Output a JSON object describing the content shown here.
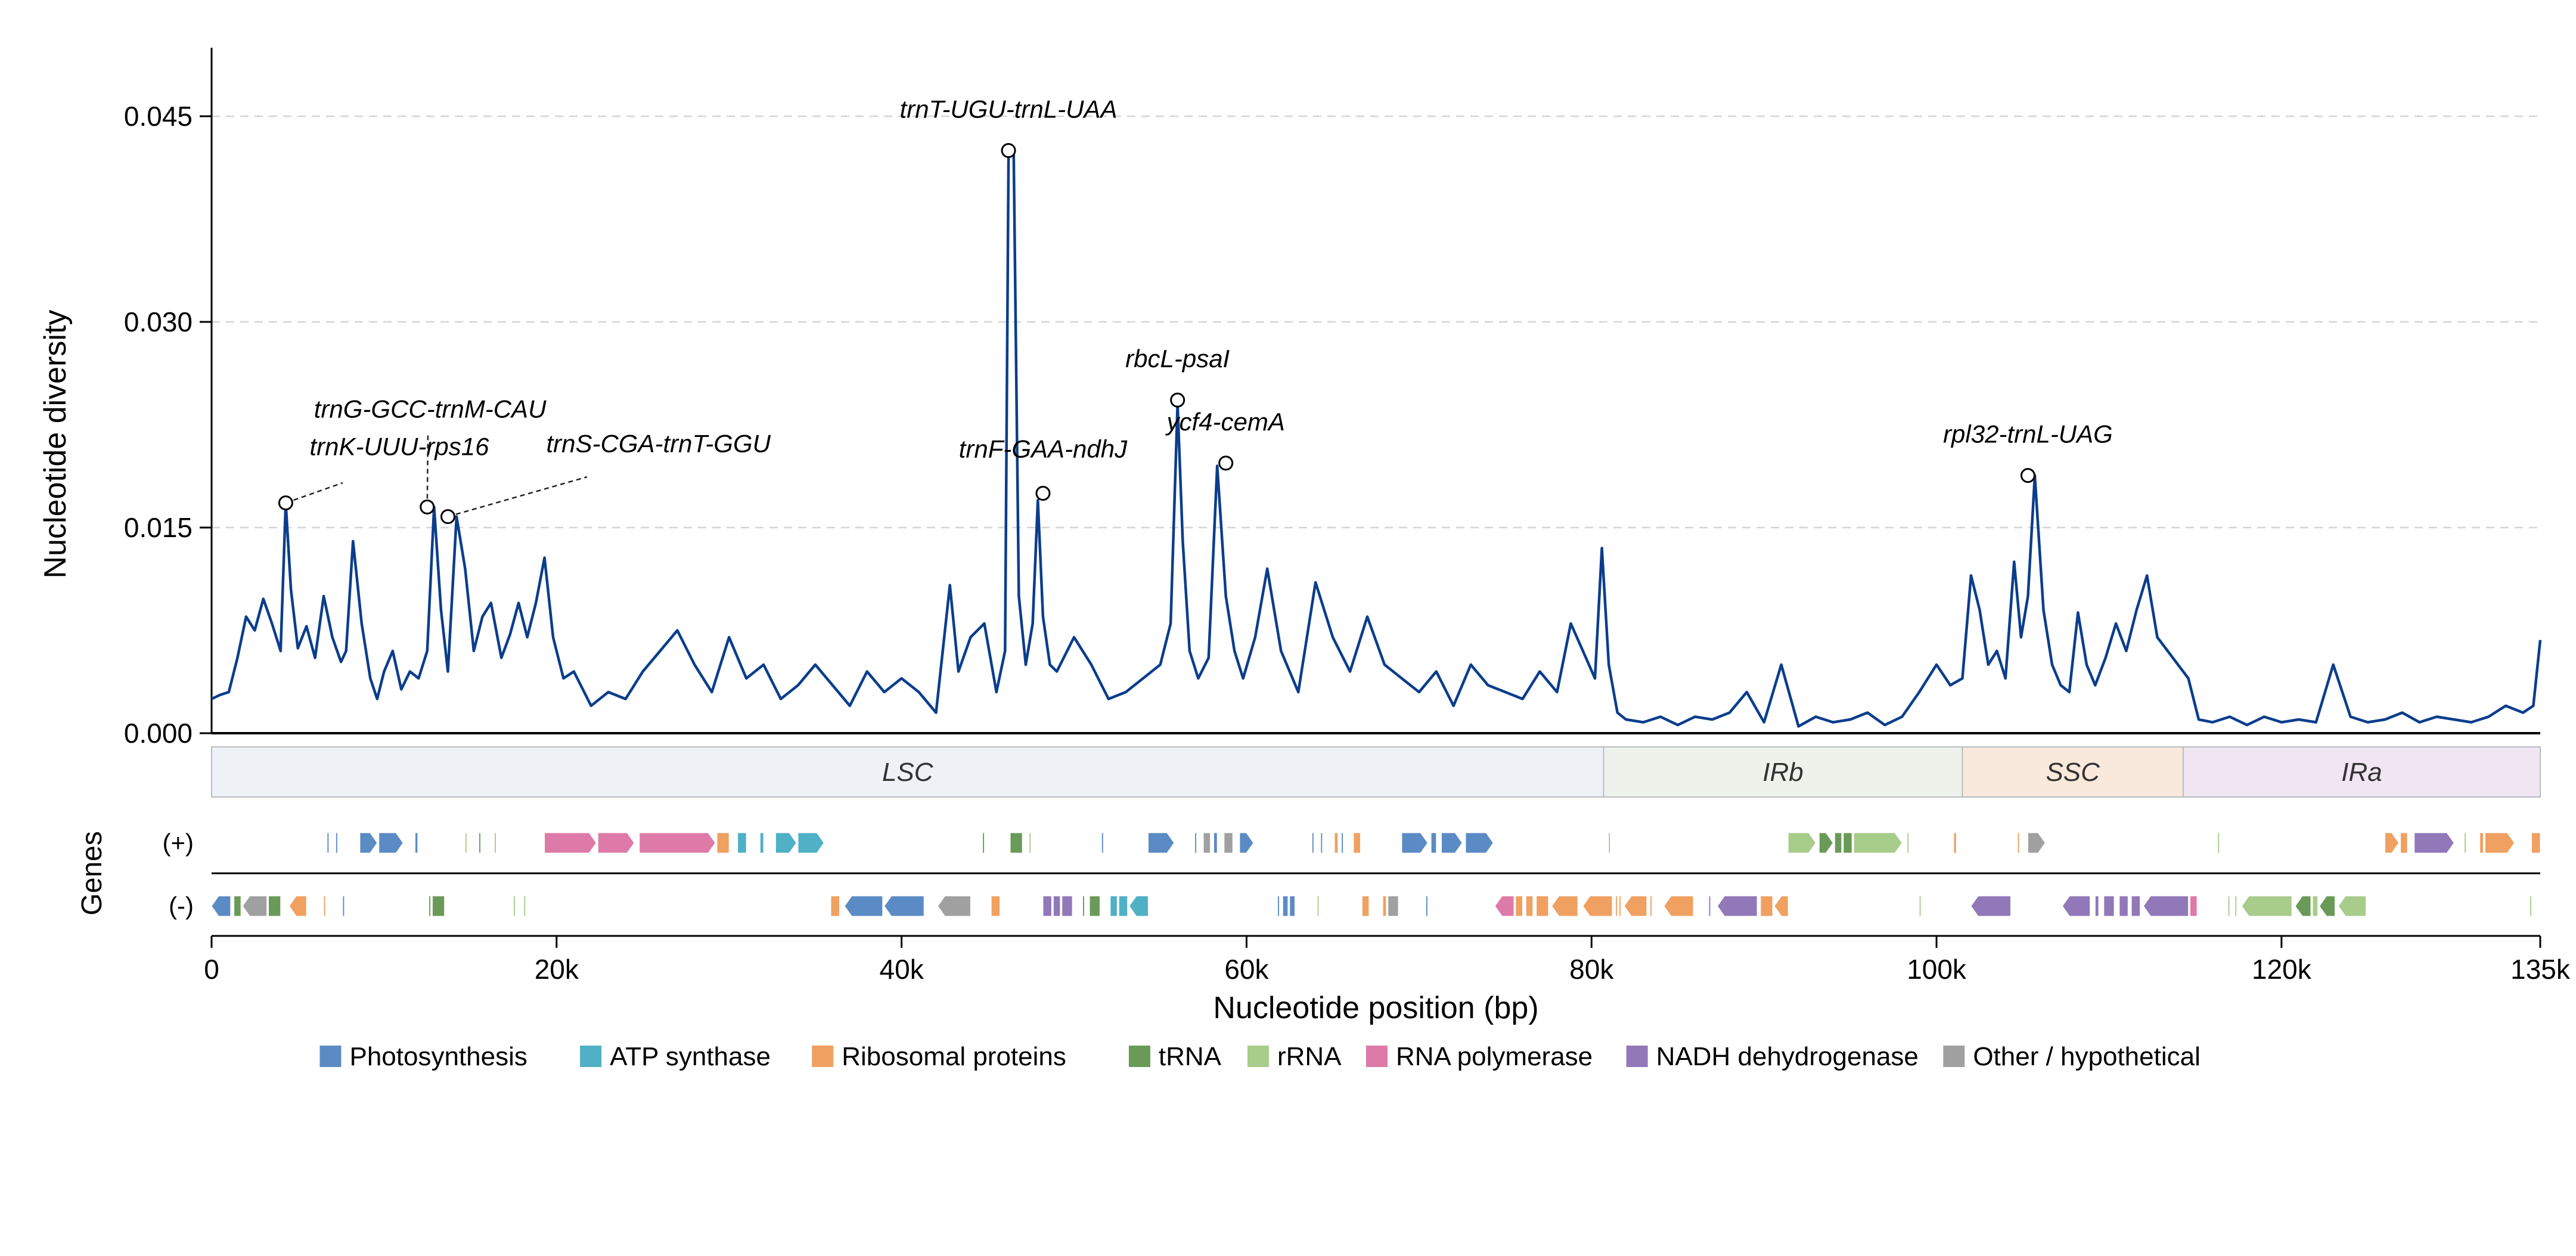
{
  "chart_data": {
    "type": "line",
    "ylabel": "Nucleotide diversity",
    "xlabel": "Nucleotide position (bp)",
    "xlim": [
      0,
      135000
    ],
    "ylim": [
      0,
      0.05
    ],
    "yticks": [
      0.0,
      0.015,
      0.03,
      0.045
    ],
    "ytick_labels": [
      "0.000",
      "0.015",
      "0.030",
      "0.045"
    ],
    "xticks": [
      0,
      20000,
      40000,
      60000,
      80000,
      100000,
      120000,
      135000
    ],
    "xtick_labels": [
      "0",
      "20k",
      "40k",
      "60k",
      "80k",
      "100k",
      "120k",
      "135k"
    ],
    "grid": "horizontal dashed at y ticks",
    "line_color": "#0b3d8c",
    "series": [
      {
        "values_x": [
          0,
          500,
          1000,
          1500,
          2000,
          2500,
          3000,
          3500,
          4000,
          4300,
          4600,
          5000,
          5500,
          6000,
          6500,
          7000,
          7500,
          7800,
          8200,
          8700,
          9200,
          9600,
          10000,
          10500,
          11000,
          11500,
          12000,
          12500,
          12900,
          13300,
          13700,
          14200,
          14700,
          15200,
          15700,
          16200,
          16800,
          17300,
          17800,
          18300,
          18800,
          19300,
          19800,
          20400,
          21000,
          22000,
          23000,
          24000,
          25000,
          26000,
          27000,
          28000,
          29000,
          30000,
          31000,
          32000,
          33000,
          34000,
          35000,
          36000,
          37000,
          38000,
          39000,
          40000,
          41000,
          42000,
          42800,
          43300,
          44000,
          44800,
          45500,
          46000,
          46200,
          46500,
          46800,
          47200,
          47600,
          47900,
          48200,
          48600,
          49000,
          50000,
          51000,
          52000,
          53000,
          54000,
          55000,
          55600,
          56000,
          56300,
          56700,
          57200,
          57800,
          58300,
          58800,
          59300,
          59800,
          60500,
          61200,
          62000,
          63000,
          64000,
          65000,
          66000,
          67000,
          68000,
          69000,
          70000,
          71000,
          72000,
          73000,
          74000,
          75000,
          76000,
          77000,
          78000,
          78800,
          79500,
          80200,
          80600,
          81000,
          81500,
          82000,
          83000,
          84000,
          85000,
          86000,
          87000,
          88000,
          89000,
          90000,
          91000,
          92000,
          93000,
          94000,
          95000,
          96000,
          97000,
          98000,
          99000,
          100000,
          100800,
          101500,
          102000,
          102500,
          103000,
          103500,
          104000,
          104500,
          104900,
          105300,
          105700,
          106200,
          106700,
          107200,
          107700,
          108200,
          108700,
          109200,
          109800,
          110400,
          111000,
          111600,
          112200,
          112800,
          113400,
          114000,
          114600,
          115200,
          116000,
          117000,
          118000,
          119000,
          120000,
          121000,
          122000,
          123000,
          124000,
          125000,
          126000,
          127000,
          128000,
          129000,
          130000,
          131000,
          132000,
          133000,
          134000,
          134600,
          135000
        ],
        "values_y": [
          0.0025,
          0.0028,
          0.003,
          0.0055,
          0.0085,
          0.0075,
          0.0098,
          0.008,
          0.006,
          0.0168,
          0.0105,
          0.0062,
          0.0078,
          0.0055,
          0.01,
          0.007,
          0.0052,
          0.006,
          0.014,
          0.008,
          0.004,
          0.0025,
          0.0045,
          0.006,
          0.0032,
          0.0045,
          0.004,
          0.006,
          0.0165,
          0.009,
          0.0045,
          0.0158,
          0.012,
          0.006,
          0.0085,
          0.0095,
          0.0055,
          0.0072,
          0.0095,
          0.007,
          0.0095,
          0.0128,
          0.007,
          0.004,
          0.0045,
          0.002,
          0.003,
          0.0025,
          0.0045,
          0.006,
          0.0075,
          0.005,
          0.003,
          0.007,
          0.004,
          0.005,
          0.0025,
          0.0035,
          0.005,
          0.0035,
          0.002,
          0.0045,
          0.003,
          0.004,
          0.003,
          0.0015,
          0.0108,
          0.0045,
          0.007,
          0.008,
          0.003,
          0.006,
          0.042,
          0.0425,
          0.01,
          0.005,
          0.008,
          0.017,
          0.0085,
          0.005,
          0.0045,
          0.007,
          0.005,
          0.0025,
          0.003,
          0.004,
          0.005,
          0.008,
          0.024,
          0.014,
          0.006,
          0.004,
          0.0055,
          0.0195,
          0.01,
          0.006,
          0.004,
          0.007,
          0.012,
          0.006,
          0.003,
          0.011,
          0.007,
          0.0045,
          0.0085,
          0.005,
          0.004,
          0.003,
          0.0045,
          0.002,
          0.005,
          0.0035,
          0.003,
          0.0025,
          0.0045,
          0.003,
          0.008,
          0.006,
          0.004,
          0.0135,
          0.005,
          0.0015,
          0.001,
          0.0008,
          0.0012,
          0.0006,
          0.0012,
          0.001,
          0.0015,
          0.003,
          0.0008,
          0.005,
          0.0005,
          0.0012,
          0.0008,
          0.001,
          0.0015,
          0.0006,
          0.0012,
          0.003,
          0.005,
          0.0035,
          0.004,
          0.0115,
          0.009,
          0.005,
          0.006,
          0.004,
          0.0125,
          0.007,
          0.01,
          0.0188,
          0.009,
          0.005,
          0.0035,
          0.003,
          0.0088,
          0.005,
          0.0035,
          0.0055,
          0.008,
          0.006,
          0.009,
          0.0115,
          0.007,
          0.006,
          0.005,
          0.004,
          0.001,
          0.0008,
          0.0012,
          0.0006,
          0.0012,
          0.0008,
          0.001,
          0.0008,
          0.005,
          0.0012,
          0.0008,
          0.001,
          0.0015,
          0.0008,
          0.0012,
          0.001,
          0.0008,
          0.0012,
          0.002,
          0.0015,
          0.002,
          0.0068
        ]
      }
    ],
    "annotations": [
      {
        "label": "trnK-UUU-rps16",
        "x": 4300,
        "y": 0.0168
      },
      {
        "label": "trnG-GCC-trnM-CAU",
        "x": 12500,
        "y": 0.0165
      },
      {
        "label": "trnS-CGA-trnT-GGU",
        "x": 13700,
        "y": 0.0158
      },
      {
        "label": "trnT-UGU-trnL-UAA",
        "x": 46200,
        "y": 0.0425
      },
      {
        "label": "trnF-GAA-ndhJ",
        "x": 48200,
        "y": 0.0175
      },
      {
        "label": "rbcL-psaI",
        "x": 56000,
        "y": 0.0243
      },
      {
        "label": "ycf4-cemA",
        "x": 58800,
        "y": 0.0197
      },
      {
        "label": "rpl32-trnL-UAG",
        "x": 105300,
        "y": 0.0188
      }
    ],
    "regions": [
      {
        "label": "LSC",
        "start": 0,
        "end": 80700,
        "color": "#eef2f6"
      },
      {
        "label": "IRb",
        "start": 80700,
        "end": 101500,
        "color": "#edf3eb"
      },
      {
        "label": "SSC",
        "start": 101500,
        "end": 114300,
        "color": "#f9e9dc"
      },
      {
        "label": "IRa",
        "start": 114300,
        "end": 135000,
        "color": "#f0e6f1"
      }
    ],
    "gene_track_label": "Genes",
    "strand_labels": [
      "(+)",
      "(-)"
    ],
    "gene_categories": [
      {
        "name": "Photosynthesis",
        "color": "#5b8bc4"
      },
      {
        "name": "ATP synthase",
        "color": "#4fb0c6"
      },
      {
        "name": "Ribosomal proteins",
        "color": "#f0a060"
      },
      {
        "name": "tRNA",
        "color": "#6a9a58"
      },
      {
        "name": "rRNA",
        "color": "#a8cc8a"
      },
      {
        "name": "RNA polymerase",
        "color": "#de7aa8"
      },
      {
        "name": "NADH dehydrogenase",
        "color": "#9178b8"
      },
      {
        "name": "Other / hypothetical",
        "color": "#a0a0a0"
      }
    ],
    "genes_plus": [
      {
        "start": 6700,
        "end": 6800,
        "cat": 0
      },
      {
        "start": 7200,
        "end": 7300,
        "cat": 0
      },
      {
        "start": 8600,
        "end": 9600,
        "cat": 0
      },
      {
        "start": 9700,
        "end": 11100,
        "cat": 0
      },
      {
        "start": 11800,
        "end": 11950,
        "cat": 0
      },
      {
        "start": 14700,
        "end": 14800,
        "cat": 4
      },
      {
        "start": 15500,
        "end": 15600,
        "cat": 3
      },
      {
        "start": 16400,
        "end": 16500,
        "cat": 4
      },
      {
        "start": 19300,
        "end": 22300,
        "cat": 5
      },
      {
        "start": 22400,
        "end": 24500,
        "cat": 5
      },
      {
        "start": 24800,
        "end": 29200,
        "cat": 5
      },
      {
        "start": 29300,
        "end": 30000,
        "cat": 2
      },
      {
        "start": 30500,
        "end": 31000,
        "cat": 1
      },
      {
        "start": 31800,
        "end": 32000,
        "cat": 1
      },
      {
        "start": 32700,
        "end": 33900,
        "cat": 1
      },
      {
        "start": 34000,
        "end": 35500,
        "cat": 1
      },
      {
        "start": 44700,
        "end": 44800,
        "cat": 3
      },
      {
        "start": 46300,
        "end": 47000,
        "cat": 3
      },
      {
        "start": 47400,
        "end": 47500,
        "cat": 4
      },
      {
        "start": 51600,
        "end": 51700,
        "cat": 0
      },
      {
        "start": 54300,
        "end": 55800,
        "cat": 0
      },
      {
        "start": 57000,
        "end": 57100,
        "cat": 0
      },
      {
        "start": 57500,
        "end": 57900,
        "cat": 7
      },
      {
        "start": 58100,
        "end": 58300,
        "cat": 0
      },
      {
        "start": 58700,
        "end": 59200,
        "cat": 7
      },
      {
        "start": 59600,
        "end": 60400,
        "cat": 0
      },
      {
        "start": 63800,
        "end": 63900,
        "cat": 0
      },
      {
        "start": 64300,
        "end": 64400,
        "cat": 0
      },
      {
        "start": 65100,
        "end": 65300,
        "cat": 2
      },
      {
        "start": 65500,
        "end": 65600,
        "cat": 0
      },
      {
        "start": 66200,
        "end": 66600,
        "cat": 2
      },
      {
        "start": 69000,
        "end": 70500,
        "cat": 0
      },
      {
        "start": 70700,
        "end": 71000,
        "cat": 0
      },
      {
        "start": 71300,
        "end": 72500,
        "cat": 0
      },
      {
        "start": 72700,
        "end": 74300,
        "cat": 0
      },
      {
        "start": 81000,
        "end": 81050,
        "cat": 3
      },
      {
        "start": 91400,
        "end": 93000,
        "cat": 4
      },
      {
        "start": 93200,
        "end": 94000,
        "cat": 3
      },
      {
        "start": 94100,
        "end": 94500,
        "cat": 3
      },
      {
        "start": 94600,
        "end": 95100,
        "cat": 3
      },
      {
        "start": 95200,
        "end": 98000,
        "cat": 4
      },
      {
        "start": 98300,
        "end": 98400,
        "cat": 4
      },
      {
        "start": 101000,
        "end": 101150,
        "cat": 2
      },
      {
        "start": 104700,
        "end": 104800,
        "cat": 2
      },
      {
        "start": 105300,
        "end": 106300,
        "cat": 7
      },
      {
        "start": 116300,
        "end": 116400,
        "cat": 4
      },
      {
        "start": 126000,
        "end": 126800,
        "cat": 2
      },
      {
        "start": 126900,
        "end": 127300,
        "cat": 2
      },
      {
        "start": 127700,
        "end": 130000,
        "cat": 6
      },
      {
        "start": 130600,
        "end": 130700,
        "cat": 4
      },
      {
        "start": 131500,
        "end": 131700,
        "cat": 2
      },
      {
        "start": 131800,
        "end": 133500,
        "cat": 2
      },
      {
        "start": 134500,
        "end": 135000,
        "cat": 2
      }
    ],
    "genes_minus": [
      {
        "start": 0,
        "end": 1100,
        "cat": 0
      },
      {
        "start": 1300,
        "end": 1700,
        "cat": 3
      },
      {
        "start": 1800,
        "end": 3200,
        "cat": 7
      },
      {
        "start": 3300,
        "end": 4000,
        "cat": 3
      },
      {
        "start": 4500,
        "end": 5500,
        "cat": 2
      },
      {
        "start": 6500,
        "end": 6600,
        "cat": 2
      },
      {
        "start": 7600,
        "end": 7700,
        "cat": 0
      },
      {
        "start": 12600,
        "end": 12700,
        "cat": 3
      },
      {
        "start": 12800,
        "end": 13500,
        "cat": 3
      },
      {
        "start": 17500,
        "end": 17600,
        "cat": 4
      },
      {
        "start": 18100,
        "end": 18200,
        "cat": 4
      },
      {
        "start": 35900,
        "end": 36400,
        "cat": 2
      },
      {
        "start": 36700,
        "end": 38900,
        "cat": 0
      },
      {
        "start": 39000,
        "end": 41300,
        "cat": 0
      },
      {
        "start": 42100,
        "end": 44000,
        "cat": 7
      },
      {
        "start": 45200,
        "end": 45700,
        "cat": 2
      },
      {
        "start": 48200,
        "end": 48700,
        "cat": 6
      },
      {
        "start": 48800,
        "end": 49200,
        "cat": 6
      },
      {
        "start": 49300,
        "end": 49900,
        "cat": 6
      },
      {
        "start": 50500,
        "end": 50600,
        "cat": 3
      },
      {
        "start": 50900,
        "end": 51500,
        "cat": 3
      },
      {
        "start": 52100,
        "end": 52500,
        "cat": 1
      },
      {
        "start": 52600,
        "end": 53100,
        "cat": 1
      },
      {
        "start": 53200,
        "end": 54300,
        "cat": 1
      },
      {
        "start": 61800,
        "end": 61900,
        "cat": 0
      },
      {
        "start": 62100,
        "end": 62400,
        "cat": 0
      },
      {
        "start": 62500,
        "end": 62800,
        "cat": 0
      },
      {
        "start": 64100,
        "end": 64200,
        "cat": 4
      },
      {
        "start": 66700,
        "end": 67100,
        "cat": 2
      },
      {
        "start": 67900,
        "end": 68100,
        "cat": 2
      },
      {
        "start": 68200,
        "end": 68800,
        "cat": 7
      },
      {
        "start": 70400,
        "end": 70500,
        "cat": 0
      },
      {
        "start": 74400,
        "end": 75500,
        "cat": 5
      },
      {
        "start": 75600,
        "end": 76000,
        "cat": 2
      },
      {
        "start": 76200,
        "end": 76600,
        "cat": 2
      },
      {
        "start": 76800,
        "end": 77500,
        "cat": 2
      },
      {
        "start": 77700,
        "end": 79200,
        "cat": 2
      },
      {
        "start": 79500,
        "end": 81200,
        "cat": 2
      },
      {
        "start": 81400,
        "end": 81500,
        "cat": 2
      },
      {
        "start": 81600,
        "end": 81700,
        "cat": 2
      },
      {
        "start": 81900,
        "end": 83200,
        "cat": 2
      },
      {
        "start": 83400,
        "end": 83500,
        "cat": 2
      },
      {
        "start": 84200,
        "end": 85900,
        "cat": 2
      },
      {
        "start": 86800,
        "end": 86900,
        "cat": 6
      },
      {
        "start": 87300,
        "end": 89600,
        "cat": 6
      },
      {
        "start": 89800,
        "end": 90500,
        "cat": 2
      },
      {
        "start": 90600,
        "end": 91400,
        "cat": 2
      },
      {
        "start": 99000,
        "end": 99100,
        "cat": 4
      },
      {
        "start": 102000,
        "end": 104300,
        "cat": 6
      },
      {
        "start": 107300,
        "end": 108900,
        "cat": 6
      },
      {
        "start": 109200,
        "end": 109400,
        "cat": 6
      },
      {
        "start": 109700,
        "end": 110300,
        "cat": 6
      },
      {
        "start": 110600,
        "end": 111100,
        "cat": 6
      },
      {
        "start": 111300,
        "end": 111800,
        "cat": 6
      },
      {
        "start": 112000,
        "end": 114600,
        "cat": 6
      },
      {
        "start": 114700,
        "end": 115100,
        "cat": 5
      },
      {
        "start": 116900,
        "end": 117000,
        "cat": 4
      },
      {
        "start": 117300,
        "end": 117400,
        "cat": 4
      },
      {
        "start": 117700,
        "end": 120600,
        "cat": 4
      },
      {
        "start": 120800,
        "end": 121700,
        "cat": 3
      },
      {
        "start": 121800,
        "end": 122100,
        "cat": 4
      },
      {
        "start": 122200,
        "end": 123100,
        "cat": 3
      },
      {
        "start": 123300,
        "end": 124900,
        "cat": 4
      },
      {
        "start": 134400,
        "end": 134500,
        "cat": 4
      }
    ]
  }
}
